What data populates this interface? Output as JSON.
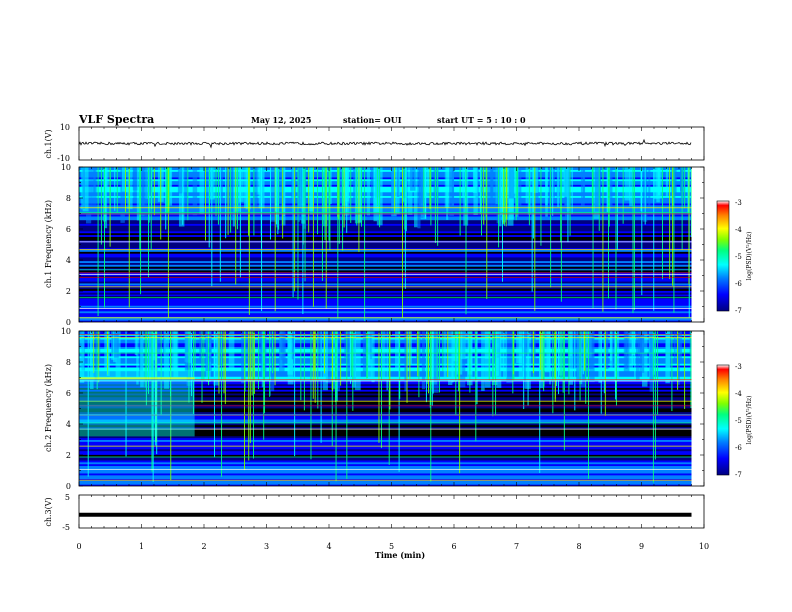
{
  "header": {
    "title": "VLF Spectra",
    "date": "May 12, 2025",
    "station": "station= OUI",
    "start": "start  UT  =   5 : 10 : 0"
  },
  "colors": {
    "colormap": [
      "#000080",
      "#0000ff",
      "#0080ff",
      "#00ffff",
      "#00ff80",
      "#80ff00",
      "#ffff00",
      "#ff8000",
      "#ff0000",
      "#ffffff"
    ],
    "waveform": "#000000",
    "background": "#ffffff"
  },
  "chart_data": [
    {
      "type": "line",
      "panel": "ch1-waveform",
      "ylabel": "ch.1(V)",
      "ylim": [
        -10,
        10
      ],
      "yticks": [
        "10",
        "-10"
      ],
      "x": [
        0,
        9.8
      ],
      "values": [
        0,
        0
      ],
      "note_level": "near 0 V with small noise"
    },
    {
      "type": "heatmap",
      "panel": "ch1-spectrogram",
      "ylabel": "ch.1 Frequency (kHz)",
      "ylim": [
        0,
        10
      ],
      "yticks": [
        "0",
        "2",
        "4",
        "6",
        "8",
        "10"
      ],
      "colorbar": {
        "label": "log(PSD)(V²/Hz)",
        "range": [
          -7,
          -3
        ],
        "ticks": [
          "-3",
          "-4",
          "-5",
          "-6",
          "-7"
        ]
      }
    },
    {
      "type": "heatmap",
      "panel": "ch2-spectrogram",
      "ylabel": "ch.2 Frequency (kHz)",
      "ylim": [
        0,
        10
      ],
      "yticks": [
        "0",
        "2",
        "4",
        "6",
        "8",
        "10"
      ],
      "colorbar": {
        "label": "log(PSD)(V²/Hz)",
        "range": [
          -7,
          -3
        ],
        "ticks": [
          "-3",
          "-4",
          "-5",
          "-6",
          "-7"
        ]
      }
    },
    {
      "type": "line",
      "panel": "ch3-waveform",
      "ylabel": "ch.3(V)",
      "ylim": [
        -5,
        5
      ],
      "yticks": [
        "5",
        "-5"
      ],
      "x": [
        0,
        9.8
      ],
      "values": [
        -1,
        -1
      ]
    }
  ],
  "xaxis": {
    "label": "Time (min)",
    "range": [
      0,
      10
    ],
    "ticks": [
      "0",
      "1",
      "2",
      "3",
      "4",
      "5",
      "6",
      "7",
      "8",
      "9",
      "10"
    ]
  }
}
